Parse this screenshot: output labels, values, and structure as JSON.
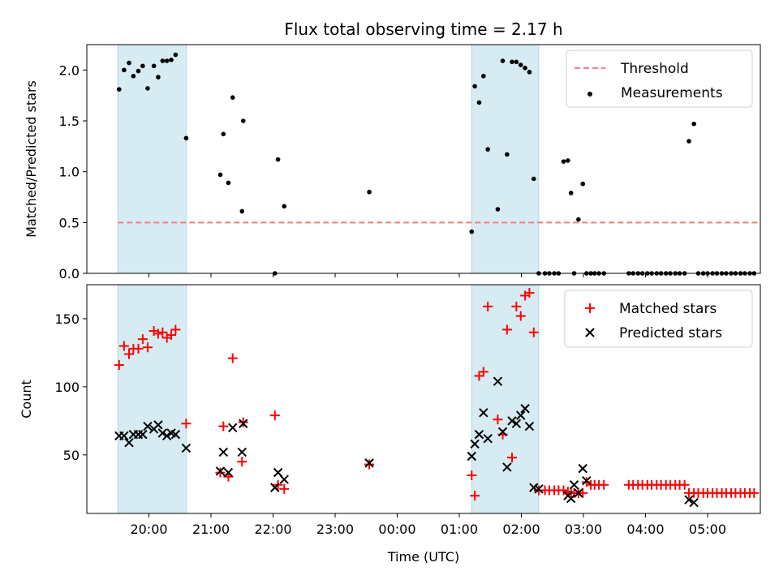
{
  "chart_data": [
    {
      "type": "scatter",
      "title": "Flux total observing time = 2.17 h",
      "xlabel": "",
      "ylabel": "Matched/Predicted stars",
      "xlim": [
        -1.0,
        9.85
      ],
      "ylim": [
        0,
        2.25
      ],
      "yticks": [
        0.0,
        0.5,
        1.0,
        1.5,
        2.0
      ],
      "ytick_labels": [
        "0.0",
        "0.5",
        "1.0",
        "1.5",
        "2.0"
      ],
      "shaded_spans": [
        [
          -0.5,
          0.6
        ],
        [
          5.2,
          6.28
        ]
      ],
      "threshold": {
        "name": "Threshold",
        "value": 0.5,
        "x_range": [
          -0.5,
          9.8
        ],
        "color": "#f47c7c"
      },
      "series": [
        {
          "name": "Measurements",
          "marker": "dot",
          "color": "#000000",
          "x": [
            -0.48,
            -0.4,
            -0.32,
            -0.25,
            -0.17,
            -0.1,
            -0.02,
            0.08,
            0.15,
            0.22,
            0.29,
            0.36,
            0.43,
            0.6,
            1.15,
            1.2,
            1.28,
            1.35,
            1.5,
            1.52,
            2.03,
            2.08,
            2.18,
            3.55,
            5.2,
            5.25,
            5.32,
            5.39,
            5.46,
            5.62,
            5.7,
            5.77,
            5.85,
            5.92,
            5.99,
            6.06,
            6.13,
            6.2,
            6.28,
            6.38,
            6.45,
            6.53,
            6.6,
            6.68,
            6.75,
            6.8,
            6.85,
            6.92,
            6.99,
            7.05,
            7.12,
            7.18,
            7.25,
            7.33,
            7.73,
            7.8,
            7.88,
            7.95,
            8.03,
            8.1,
            8.18,
            8.25,
            8.33,
            8.4,
            8.48,
            8.55,
            8.63,
            8.7,
            8.78,
            8.85,
            8.93,
            9.0,
            9.08,
            9.15,
            9.23,
            9.3,
            9.38,
            9.45,
            9.53,
            9.6,
            9.68,
            9.75
          ],
          "y": [
            1.81,
            2.0,
            2.07,
            1.94,
            1.99,
            2.04,
            1.82,
            2.04,
            1.93,
            2.09,
            2.09,
            2.1,
            2.15,
            1.33,
            0.97,
            1.37,
            0.89,
            1.73,
            0.61,
            1.5,
            0.0,
            1.12,
            0.66,
            0.8,
            0.41,
            1.84,
            1.68,
            1.94,
            1.22,
            0.63,
            2.09,
            1.17,
            2.08,
            2.08,
            2.05,
            2.02,
            1.98,
            0.93,
            0.0,
            0.0,
            0.0,
            0.0,
            0.0,
            1.1,
            1.11,
            0.79,
            0.0,
            0.53,
            0.88,
            0.0,
            0.0,
            0.0,
            0.0,
            0.0,
            0.0,
            0.0,
            0.0,
            0.0,
            0.0,
            0.0,
            0.0,
            0.0,
            0.0,
            0.0,
            0.0,
            0.0,
            0.0,
            1.3,
            1.47,
            0.0,
            0.0,
            0.0,
            0.0,
            0.0,
            0.0,
            0.0,
            0.0,
            0.0,
            0.0,
            0.0,
            0.0,
            0.0
          ]
        }
      ],
      "legend": [
        "Threshold",
        "Measurements"
      ],
      "legend_position": "top-right"
    },
    {
      "type": "scatter",
      "title": "",
      "xlabel": "Time (UTC)",
      "ylabel": "Count",
      "xlim": [
        -1.0,
        9.85
      ],
      "ylim": [
        7,
        175
      ],
      "yticks": [
        50,
        100,
        150
      ],
      "ytick_labels": [
        "50",
        "100",
        "150"
      ],
      "xticks": [
        0,
        1,
        2,
        3,
        4,
        5,
        6,
        7,
        8,
        9
      ],
      "xtick_labels": [
        "20:00",
        "21:00",
        "22:00",
        "23:00",
        "00:00",
        "01:00",
        "02:00",
        "03:00",
        "04:00",
        "05:00"
      ],
      "shaded_spans": [
        [
          -0.5,
          0.6
        ],
        [
          5.2,
          6.28
        ]
      ],
      "series": [
        {
          "name": "Matched stars",
          "marker": "plus",
          "color": "#ff0000",
          "x": [
            -0.48,
            -0.4,
            -0.32,
            -0.25,
            -0.17,
            -0.1,
            -0.02,
            0.08,
            0.15,
            0.22,
            0.29,
            0.36,
            0.43,
            0.6,
            1.15,
            1.2,
            1.28,
            1.35,
            1.5,
            1.52,
            2.03,
            2.08,
            2.18,
            3.55,
            5.2,
            5.25,
            5.32,
            5.39,
            5.46,
            5.62,
            5.7,
            5.77,
            5.85,
            5.92,
            5.99,
            6.06,
            6.13,
            6.2,
            6.28,
            6.38,
            6.45,
            6.53,
            6.6,
            6.68,
            6.75,
            6.8,
            6.85,
            6.92,
            6.99,
            7.05,
            7.12,
            7.18,
            7.25,
            7.33,
            7.73,
            7.8,
            7.88,
            7.95,
            8.03,
            8.1,
            8.18,
            8.25,
            8.33,
            8.4,
            8.48,
            8.55,
            8.63,
            8.7,
            8.78,
            8.85,
            8.93,
            9.0,
            9.08,
            9.15,
            9.23,
            9.3,
            9.38,
            9.45,
            9.53,
            9.6,
            9.68,
            9.75
          ],
          "y": [
            116,
            130,
            124,
            128,
            128,
            135,
            129,
            141,
            139,
            140,
            136,
            138,
            142,
            73,
            37,
            71,
            34,
            121,
            45,
            74,
            79,
            28,
            25,
            43,
            35,
            20,
            108,
            111,
            159,
            76,
            65,
            142,
            48,
            159,
            152,
            167,
            169,
            140,
            24,
            24,
            24,
            24,
            24,
            24,
            23,
            22,
            22,
            22,
            22,
            30,
            28,
            28,
            28,
            28,
            28,
            28,
            28,
            28,
            28,
            28,
            28,
            28,
            28,
            28,
            28,
            28,
            28,
            22,
            22,
            22,
            22,
            22,
            22,
            22,
            22,
            22,
            22,
            22,
            22,
            22,
            22,
            22
          ],
          "x_extra": [],
          "y_extra": []
        },
        {
          "name": "Predicted stars",
          "marker": "x",
          "color": "#000000",
          "x": [
            -0.48,
            -0.4,
            -0.32,
            -0.25,
            -0.17,
            -0.1,
            -0.02,
            0.08,
            0.15,
            0.22,
            0.29,
            0.36,
            0.43,
            0.6,
            1.15,
            1.2,
            1.28,
            1.35,
            1.5,
            1.52,
            2.03,
            2.08,
            2.18,
            3.55,
            5.2,
            5.25,
            5.32,
            5.39,
            5.46,
            5.62,
            5.7,
            5.77,
            5.85,
            5.92,
            5.99,
            6.06,
            6.13,
            6.2,
            6.28,
            6.75,
            6.8,
            6.85,
            6.92,
            6.99,
            7.05,
            8.7,
            8.78
          ],
          "y": [
            64,
            64,
            59,
            65,
            65,
            65,
            71,
            69,
            72,
            66,
            64,
            66,
            65,
            55,
            38,
            52,
            37,
            70,
            52,
            73,
            26,
            37,
            32,
            44,
            49,
            58,
            65,
            81,
            62,
            104,
            67,
            41,
            75,
            73,
            79,
            84,
            71,
            26,
            25,
            20,
            18,
            28,
            22,
            40,
            31,
            17,
            15
          ]
        }
      ],
      "legend": [
        "Matched stars",
        "Predicted stars"
      ],
      "legend_position": "top-right"
    }
  ]
}
